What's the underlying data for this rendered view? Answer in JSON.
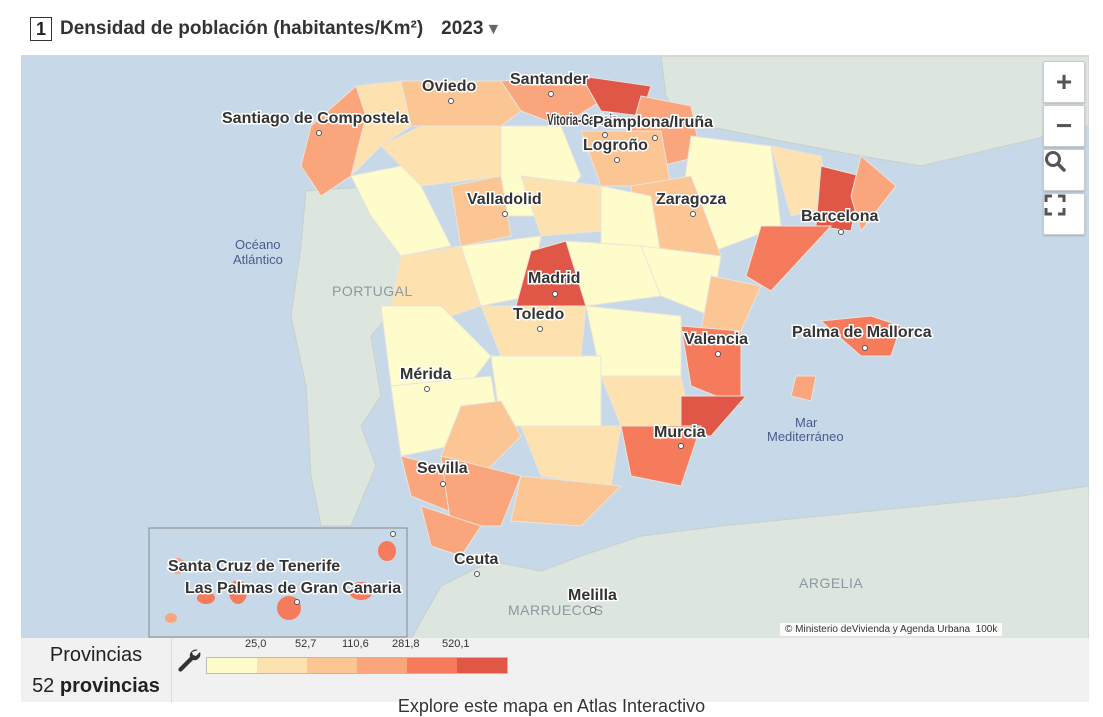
{
  "header": {
    "number": "1",
    "title": "Densidad de población (habitantes/Km²)",
    "year": "2023",
    "caret": "▼"
  },
  "map": {
    "cities": [
      {
        "name": "Oviedo"
      },
      {
        "name": "Santander"
      },
      {
        "name": "Santiago de Compostela"
      },
      {
        "name": "Vitoria-Gasteiz"
      },
      {
        "name": "Pamplona/Iruña"
      },
      {
        "name": "Logroño"
      },
      {
        "name": "Valladolid"
      },
      {
        "name": "Zaragoza"
      },
      {
        "name": "Barcelona"
      },
      {
        "name": "Madrid"
      },
      {
        "name": "Toledo"
      },
      {
        "name": "Valencia"
      },
      {
        "name": "Palma de Mallorca"
      },
      {
        "name": "Mérida"
      },
      {
        "name": "Murcia"
      },
      {
        "name": "Sevilla"
      },
      {
        "name": "Ceuta"
      },
      {
        "name": "Melilla"
      },
      {
        "name": "Santa Cruz de Tenerife"
      },
      {
        "name": "Las Palmas de Gran Canaria"
      }
    ],
    "sea_labels": {
      "atlantic_1": "Océano",
      "atlantic_2": "Atlántico",
      "med_1": "Mar",
      "med_2": "Mediterráneo"
    },
    "country_labels": {
      "portugal": "PORTUGAL",
      "argelia": "ARGELIA",
      "marruecos": "MARRUECOS"
    },
    "attribution": "© Ministerio deVivienda y Agenda Urbana",
    "scale": "100k",
    "colors": {
      "sea": "#c7d9e8",
      "land_other": "#dde5df"
    }
  },
  "controls": {
    "zoom_in": "+",
    "zoom_out": "−"
  },
  "legend": {
    "group_label": "Provincias",
    "count": "52",
    "count_unit": "provincias",
    "breaks": [
      "25,0",
      "52,7",
      "110,6",
      "281,8",
      "520,1"
    ],
    "colors": [
      "#fffccc",
      "#fde2b0",
      "#fcc594",
      "#fba57c",
      "#f67b5c",
      "#e05747"
    ]
  },
  "footer": {
    "link_text": "Explore este mapa en Atlas Interactivo"
  }
}
